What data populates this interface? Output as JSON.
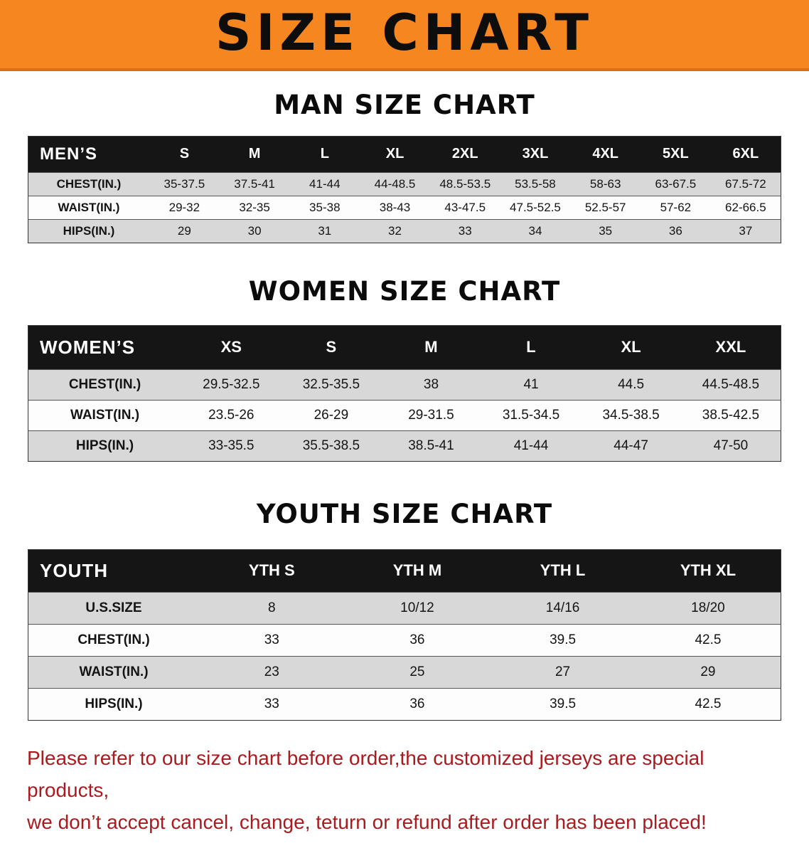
{
  "banner": {
    "title": "SIZE CHART"
  },
  "colors": {
    "banner_bg": "#f6861f",
    "header_bg": "#151515",
    "stripe": "#d8d8d8",
    "note_text": "#ab1a1f"
  },
  "sections": [
    {
      "heading": "MAN SIZE CHART",
      "table": {
        "header": [
          "MEN’S",
          "S",
          "M",
          "L",
          "XL",
          "2XL",
          "3XL",
          "4XL",
          "5XL",
          "6XL"
        ],
        "rows": [
          {
            "label": "CHEST(IN.)",
            "values": [
              "35-37.5",
              "37.5-41",
              "41-44",
              "44-48.5",
              "48.5-53.5",
              "53.5-58",
              "58-63",
              "63-67.5",
              "67.5-72"
            ]
          },
          {
            "label": "WAIST(IN.)",
            "values": [
              "29-32",
              "32-35",
              "35-38",
              "38-43",
              "43-47.5",
              "47.5-52.5",
              "52.5-57",
              "57-62",
              "62-66.5"
            ]
          },
          {
            "label": "HIPS(IN.)",
            "values": [
              "29",
              "30",
              "31",
              "32",
              "33",
              "34",
              "35",
              "36",
              "37"
            ]
          }
        ]
      }
    },
    {
      "heading": "WOMEN SIZE CHART",
      "table": {
        "header": [
          "WOMEN’S",
          "XS",
          "S",
          "M",
          "L",
          "XL",
          "XXL"
        ],
        "rows": [
          {
            "label": "CHEST(IN.)",
            "values": [
              "29.5-32.5",
              "32.5-35.5",
              "38",
              "41",
              "44.5",
              "44.5-48.5"
            ]
          },
          {
            "label": "WAIST(IN.)",
            "values": [
              "23.5-26",
              "26-29",
              "29-31.5",
              "31.5-34.5",
              "34.5-38.5",
              "38.5-42.5"
            ]
          },
          {
            "label": "HIPS(IN.)",
            "values": [
              "33-35.5",
              "35.5-38.5",
              "38.5-41",
              "41-44",
              "44-47",
              "47-50"
            ]
          }
        ]
      }
    },
    {
      "heading": "YOUTH SIZE CHART",
      "table": {
        "header": [
          "YOUTH",
          "YTH S",
          "YTH M",
          "YTH L",
          "YTH XL"
        ],
        "rows": [
          {
            "label": "U.S.SIZE",
            "values": [
              "8",
              "10/12",
              "14/16",
              "18/20"
            ]
          },
          {
            "label": "CHEST(IN.)",
            "values": [
              "33",
              "36",
              "39.5",
              "42.5"
            ]
          },
          {
            "label": "WAIST(IN.)",
            "values": [
              "23",
              "25",
              "27",
              "29"
            ]
          },
          {
            "label": "HIPS(IN.)",
            "values": [
              "33",
              "36",
              "39.5",
              "42.5"
            ]
          }
        ]
      }
    }
  ],
  "footer": {
    "line1": "Please refer to our size chart before order,the customized jerseys are special products,",
    "line2": "we don’t accept cancel, change, teturn or refund after order has been placed!"
  }
}
